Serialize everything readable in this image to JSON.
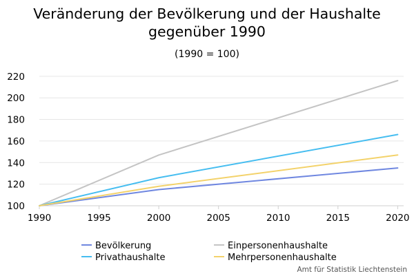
{
  "chart_data": {
    "type": "line",
    "title_line1": "Veränderung der Bevölkerung und der Haushalte",
    "title_line2": "gegenüber 1990",
    "subtitle": "(1990 = 100)",
    "xlabel": "",
    "ylabel": "",
    "x": [
      1990,
      2000,
      2020
    ],
    "xticks": [
      1990,
      1995,
      2000,
      2005,
      2010,
      2015,
      2020
    ],
    "xlim": [
      1990,
      2020.5
    ],
    "ylim": [
      100,
      225
    ],
    "yticks": [
      100,
      120,
      140,
      160,
      180,
      200,
      220
    ],
    "grid": true,
    "legend_position": "bottom",
    "series": [
      {
        "name": "Bevölkerung",
        "color": "#6f87e0",
        "values": [
          100,
          115,
          135
        ]
      },
      {
        "name": "Einpersonenhaushalte",
        "color": "#c4c4c4",
        "values": [
          100,
          147,
          216
        ]
      },
      {
        "name": "Privathaushalte",
        "color": "#45bdf0",
        "values": [
          100,
          126,
          166
        ]
      },
      {
        "name": "Mehrpersonenhaushalte",
        "color": "#f3d26a",
        "values": [
          100,
          118,
          147
        ]
      }
    ],
    "credit": "Amt für Statistik Liechtenstein"
  }
}
